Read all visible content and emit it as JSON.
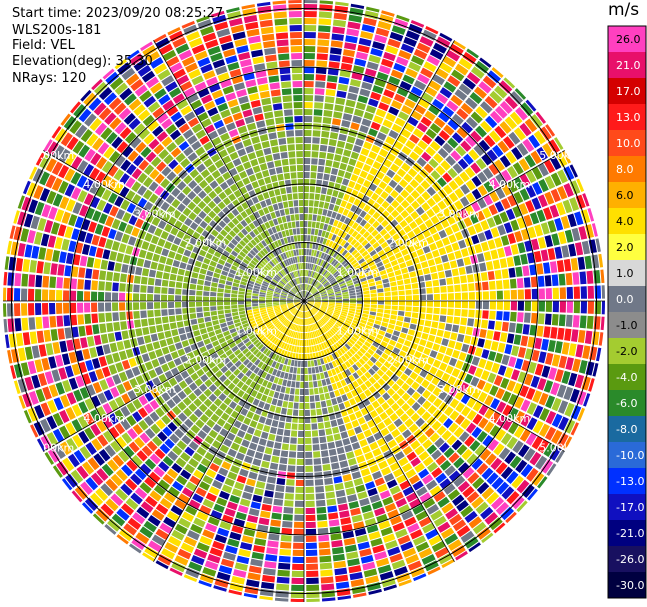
{
  "info": {
    "start_time": "Start time: 2023/09/20 08:25:27",
    "instrument": "WLS200s-181",
    "field": "Field: VEL",
    "elevation": "Elevation(deg): 35.30",
    "nrays": "NRays: 120"
  },
  "colorbar": {
    "unit": "m/s",
    "ticks": [
      "26.0",
      "21.0",
      "17.0",
      "13.0",
      "10.0",
      "8.0",
      "6.0",
      "4.0",
      "2.0",
      "1.0",
      "0.0",
      "-1.0",
      "-2.0",
      "-4.0",
      "-6.0",
      "-8.0",
      "-10.0",
      "-13.0",
      "-17.0",
      "-21.0",
      "-26.0",
      "-30.0"
    ],
    "colors": [
      "#ff40c0",
      "#e8106a",
      "#d40000",
      "#ff1a1a",
      "#ff4a1a",
      "#ff7a00",
      "#ffb000",
      "#ffe000",
      "#ffff40",
      "#d8d8d8",
      "#707888",
      "#8c8c8c",
      "#a4cc30",
      "#5a9a10",
      "#2a8a2a",
      "#1a6aa0",
      "#2a6ad8",
      "#0030ff",
      "#1010c0",
      "#000080",
      "#181060",
      "#000040"
    ]
  },
  "range_rings": {
    "labels": [
      "1.00km",
      "2.00km",
      "3.00km",
      "4.00km",
      "5.00km"
    ]
  }
}
